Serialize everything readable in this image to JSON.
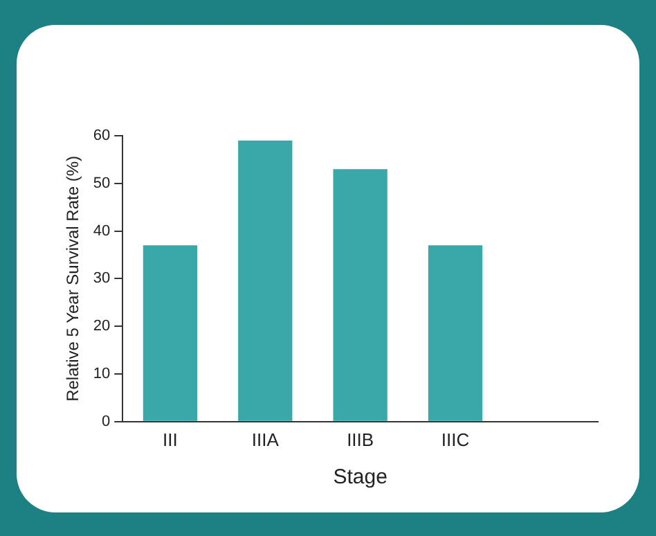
{
  "chart_data": {
    "type": "bar",
    "xlabel": "Stage",
    "ylabel": "Relative 5 Year Survival Rate (%)",
    "categories": [
      "III",
      "IIIA",
      "IIIB",
      "IIIC",
      null
    ],
    "values": [
      37,
      59,
      53,
      37,
      null
    ],
    "color": "#3aa7a8",
    "ylim": [
      0,
      60
    ],
    "yticks": [
      0,
      10,
      20,
      30,
      40,
      50,
      60
    ],
    "grid": false,
    "legend": false
  }
}
